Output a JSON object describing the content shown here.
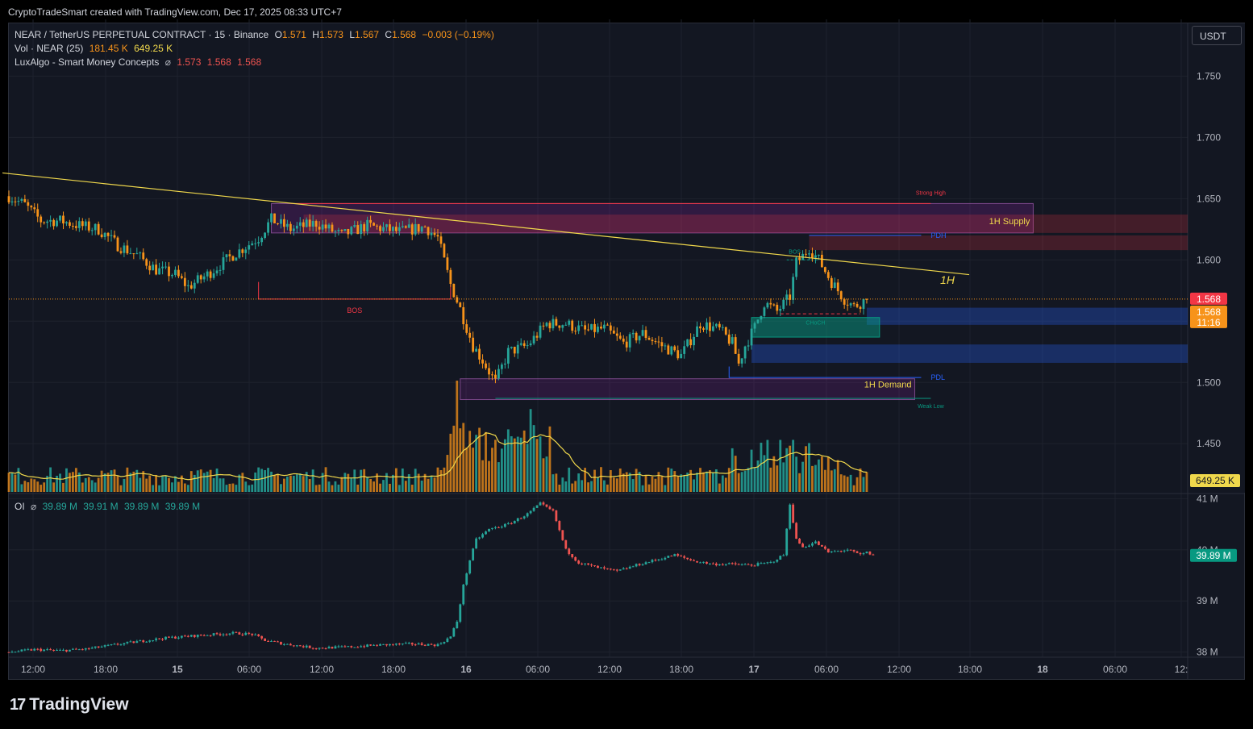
{
  "header": {
    "credit": "CryptoTradeSmart created with TradingView.com, Dec 17, 2025 08:33 UTC+7"
  },
  "legend": {
    "symbol": "NEAR / TetherUS PERPETUAL CONTRACT · 15 · Binance",
    "o_label": "O",
    "o": "1.571",
    "h_label": "H",
    "h": "1.573",
    "l_label": "L",
    "l": "1.567",
    "c_label": "C",
    "c": "1.568",
    "change": "−0.003 (−0.19%)",
    "vol_label": "Vol · NEAR (25)",
    "vol1": "181.45 K",
    "vol2": "649.25 K",
    "smc_label": "LuxAlgo - Smart Money Concepts",
    "smc_icon": "⌀",
    "smc1": "1.573",
    "smc2": "1.568",
    "smc3": "1.568",
    "oi_label": "OI",
    "oi_icon": "⌀",
    "oi1": "39.89 M",
    "oi2": "39.91 M",
    "oi3": "39.89 M",
    "oi4": "39.89 M"
  },
  "currency_button": "USDT",
  "brand": {
    "logo": "17",
    "name": "TradingView"
  },
  "colors": {
    "up": "#26a69a",
    "down": "#f7931a",
    "down_oi": "#ef5350",
    "trend": "#f0d84c",
    "bg": "#131722"
  },
  "chart_data": [
    {
      "type": "candlestick",
      "title": "NEAR / TetherUS PERPETUAL CONTRACT · 15 · Binance",
      "y_ticks": [
        "1.750",
        "1.700",
        "1.650",
        "1.600",
        "1.550",
        "1.500",
        "1.450"
      ],
      "ylim": [
        1.41,
        1.77
      ],
      "x_ticks": [
        "12:00",
        "18:00",
        "15",
        "06:00",
        "12:00",
        "18:00",
        "16",
        "06:00",
        "12:00",
        "18:00",
        "17",
        "06:00",
        "12:00",
        "18:00",
        "18",
        "06:00",
        "12:"
      ],
      "last_price": "1.568",
      "last_price_close": "1.568",
      "countdown": "11:16",
      "close_path": [
        [
          0,
          1.652
        ],
        [
          5,
          1.645
        ],
        [
          10,
          1.632
        ],
        [
          16,
          1.632
        ],
        [
          22,
          1.628
        ],
        [
          28,
          1.625
        ],
        [
          34,
          1.612
        ],
        [
          40,
          1.604
        ],
        [
          46,
          1.592
        ],
        [
          52,
          1.588
        ],
        [
          56,
          1.578
        ],
        [
          62,
          1.588
        ],
        [
          70,
          1.604
        ],
        [
          78,
          1.618
        ],
        [
          82,
          1.633
        ],
        [
          88,
          1.625
        ],
        [
          96,
          1.63
        ],
        [
          104,
          1.62
        ],
        [
          112,
          1.628
        ],
        [
          122,
          1.623
        ],
        [
          130,
          1.627
        ],
        [
          134,
          1.618
        ],
        [
          138,
          1.58
        ],
        [
          141,
          1.56
        ],
        [
          145,
          1.53
        ],
        [
          148,
          1.518
        ],
        [
          152,
          1.5
        ],
        [
          156,
          1.525
        ],
        [
          162,
          1.53
        ],
        [
          168,
          1.548
        ],
        [
          174,
          1.548
        ],
        [
          180,
          1.542
        ],
        [
          186,
          1.544
        ],
        [
          192,
          1.532
        ],
        [
          198,
          1.54
        ],
        [
          204,
          1.53
        ],
        [
          210,
          1.522
        ],
        [
          216,
          1.548
        ],
        [
          222,
          1.543
        ],
        [
          226,
          1.532
        ],
        [
          228,
          1.515
        ],
        [
          230,
          1.53
        ],
        [
          233,
          1.545
        ],
        [
          236,
          1.565
        ],
        [
          240,
          1.558
        ],
        [
          244,
          1.57
        ],
        [
          246,
          1.598
        ],
        [
          248,
          1.603
        ],
        [
          250,
          1.61
        ],
        [
          253,
          1.6
        ],
        [
          257,
          1.582
        ],
        [
          261,
          1.568
        ],
        [
          264,
          1.562
        ],
        [
          268,
          1.568
        ]
      ],
      "volume": {
        "last": "649.25 K",
        "baseline_pct": 3,
        "spike1_pct": 27,
        "spike1_bar": 140,
        "spike2_pct": 20,
        "spike2_bar": 163,
        "spike3_pct": 14,
        "spike3_bar": 244
      },
      "annotations": {
        "trendline": {
          "x0": -2,
          "y0": 1.671,
          "x1": 300,
          "y1": 1.588,
          "label": "1H"
        },
        "supply_zone": {
          "x0": 82,
          "x1": 320,
          "y0": 1.622,
          "y1": 1.646,
          "label": "1H Supply"
        },
        "supply_ext1": {
          "y0": 1.622,
          "y1": 1.637
        },
        "supply_ext2": {
          "y0": 1.608,
          "y1": 1.62
        },
        "strong_high": {
          "x0": 88,
          "x1": 288,
          "y": 1.646,
          "label": "Strong High"
        },
        "pdh": {
          "x0": 250,
          "x1": 285,
          "y": 1.62,
          "label": "PDH"
        },
        "bos1": {
          "x0": 78,
          "x1": 138,
          "y": 1.568,
          "label": "BOS"
        },
        "bos2": {
          "x0": 243,
          "x1": 253,
          "y": 1.6,
          "label": "BOS"
        },
        "choch": {
          "x0": 232,
          "x1": 272,
          "y0": 1.537,
          "y1": 1.553,
          "label": "CHoCH"
        },
        "demand_zone": {
          "x0": 141,
          "x1": 283,
          "y0": 1.486,
          "y1": 1.503,
          "label": "1H Demand"
        },
        "weak_low": {
          "x0": 152,
          "x1": 288,
          "y": 1.487,
          "label": "Weak Low"
        },
        "pdl": {
          "x0": 225,
          "x1": 285,
          "y": 1.504,
          "label": "PDL"
        },
        "blue_zone1": {
          "x0": 268,
          "y0": 1.547,
          "y1": 1.561
        },
        "blue_zone2": {
          "x0": 232,
          "y0": 1.516,
          "y1": 1.531
        }
      }
    },
    {
      "type": "candlestick",
      "title": "OI",
      "y_ticks": [
        "41 M",
        "40 M",
        "39 M",
        "38 M"
      ],
      "ylim": [
        37.9,
        41.1
      ],
      "last_value": "39.89 M",
      "oi_path": [
        [
          0,
          38.0
        ],
        [
          8,
          38.05
        ],
        [
          16,
          38.03
        ],
        [
          24,
          38.06
        ],
        [
          36,
          38.17
        ],
        [
          48,
          38.27
        ],
        [
          60,
          38.33
        ],
        [
          70,
          38.37
        ],
        [
          76,
          38.35
        ],
        [
          80,
          38.23
        ],
        [
          86,
          38.16
        ],
        [
          96,
          38.08
        ],
        [
          106,
          38.1
        ],
        [
          116,
          38.14
        ],
        [
          126,
          38.16
        ],
        [
          134,
          38.14
        ],
        [
          138,
          38.3
        ],
        [
          140,
          38.6
        ],
        [
          142,
          39.3
        ],
        [
          144,
          39.8
        ],
        [
          146,
          40.2
        ],
        [
          150,
          40.4
        ],
        [
          156,
          40.5
        ],
        [
          162,
          40.7
        ],
        [
          166,
          40.9
        ],
        [
          170,
          40.75
        ],
        [
          174,
          40.0
        ],
        [
          178,
          39.75
        ],
        [
          184,
          39.65
        ],
        [
          190,
          39.58
        ],
        [
          196,
          39.7
        ],
        [
          202,
          39.8
        ],
        [
          208,
          39.9
        ],
        [
          214,
          39.78
        ],
        [
          220,
          39.72
        ],
        [
          226,
          39.72
        ],
        [
          232,
          39.7
        ],
        [
          238,
          39.75
        ],
        [
          242,
          39.9
        ],
        [
          244,
          40.9
        ],
        [
          246,
          40.2
        ],
        [
          248,
          40.05
        ],
        [
          252,
          40.15
        ],
        [
          256,
          39.95
        ],
        [
          262,
          40.0
        ],
        [
          266,
          39.9
        ],
        [
          268,
          39.95
        ],
        [
          270,
          39.89
        ]
      ]
    }
  ]
}
